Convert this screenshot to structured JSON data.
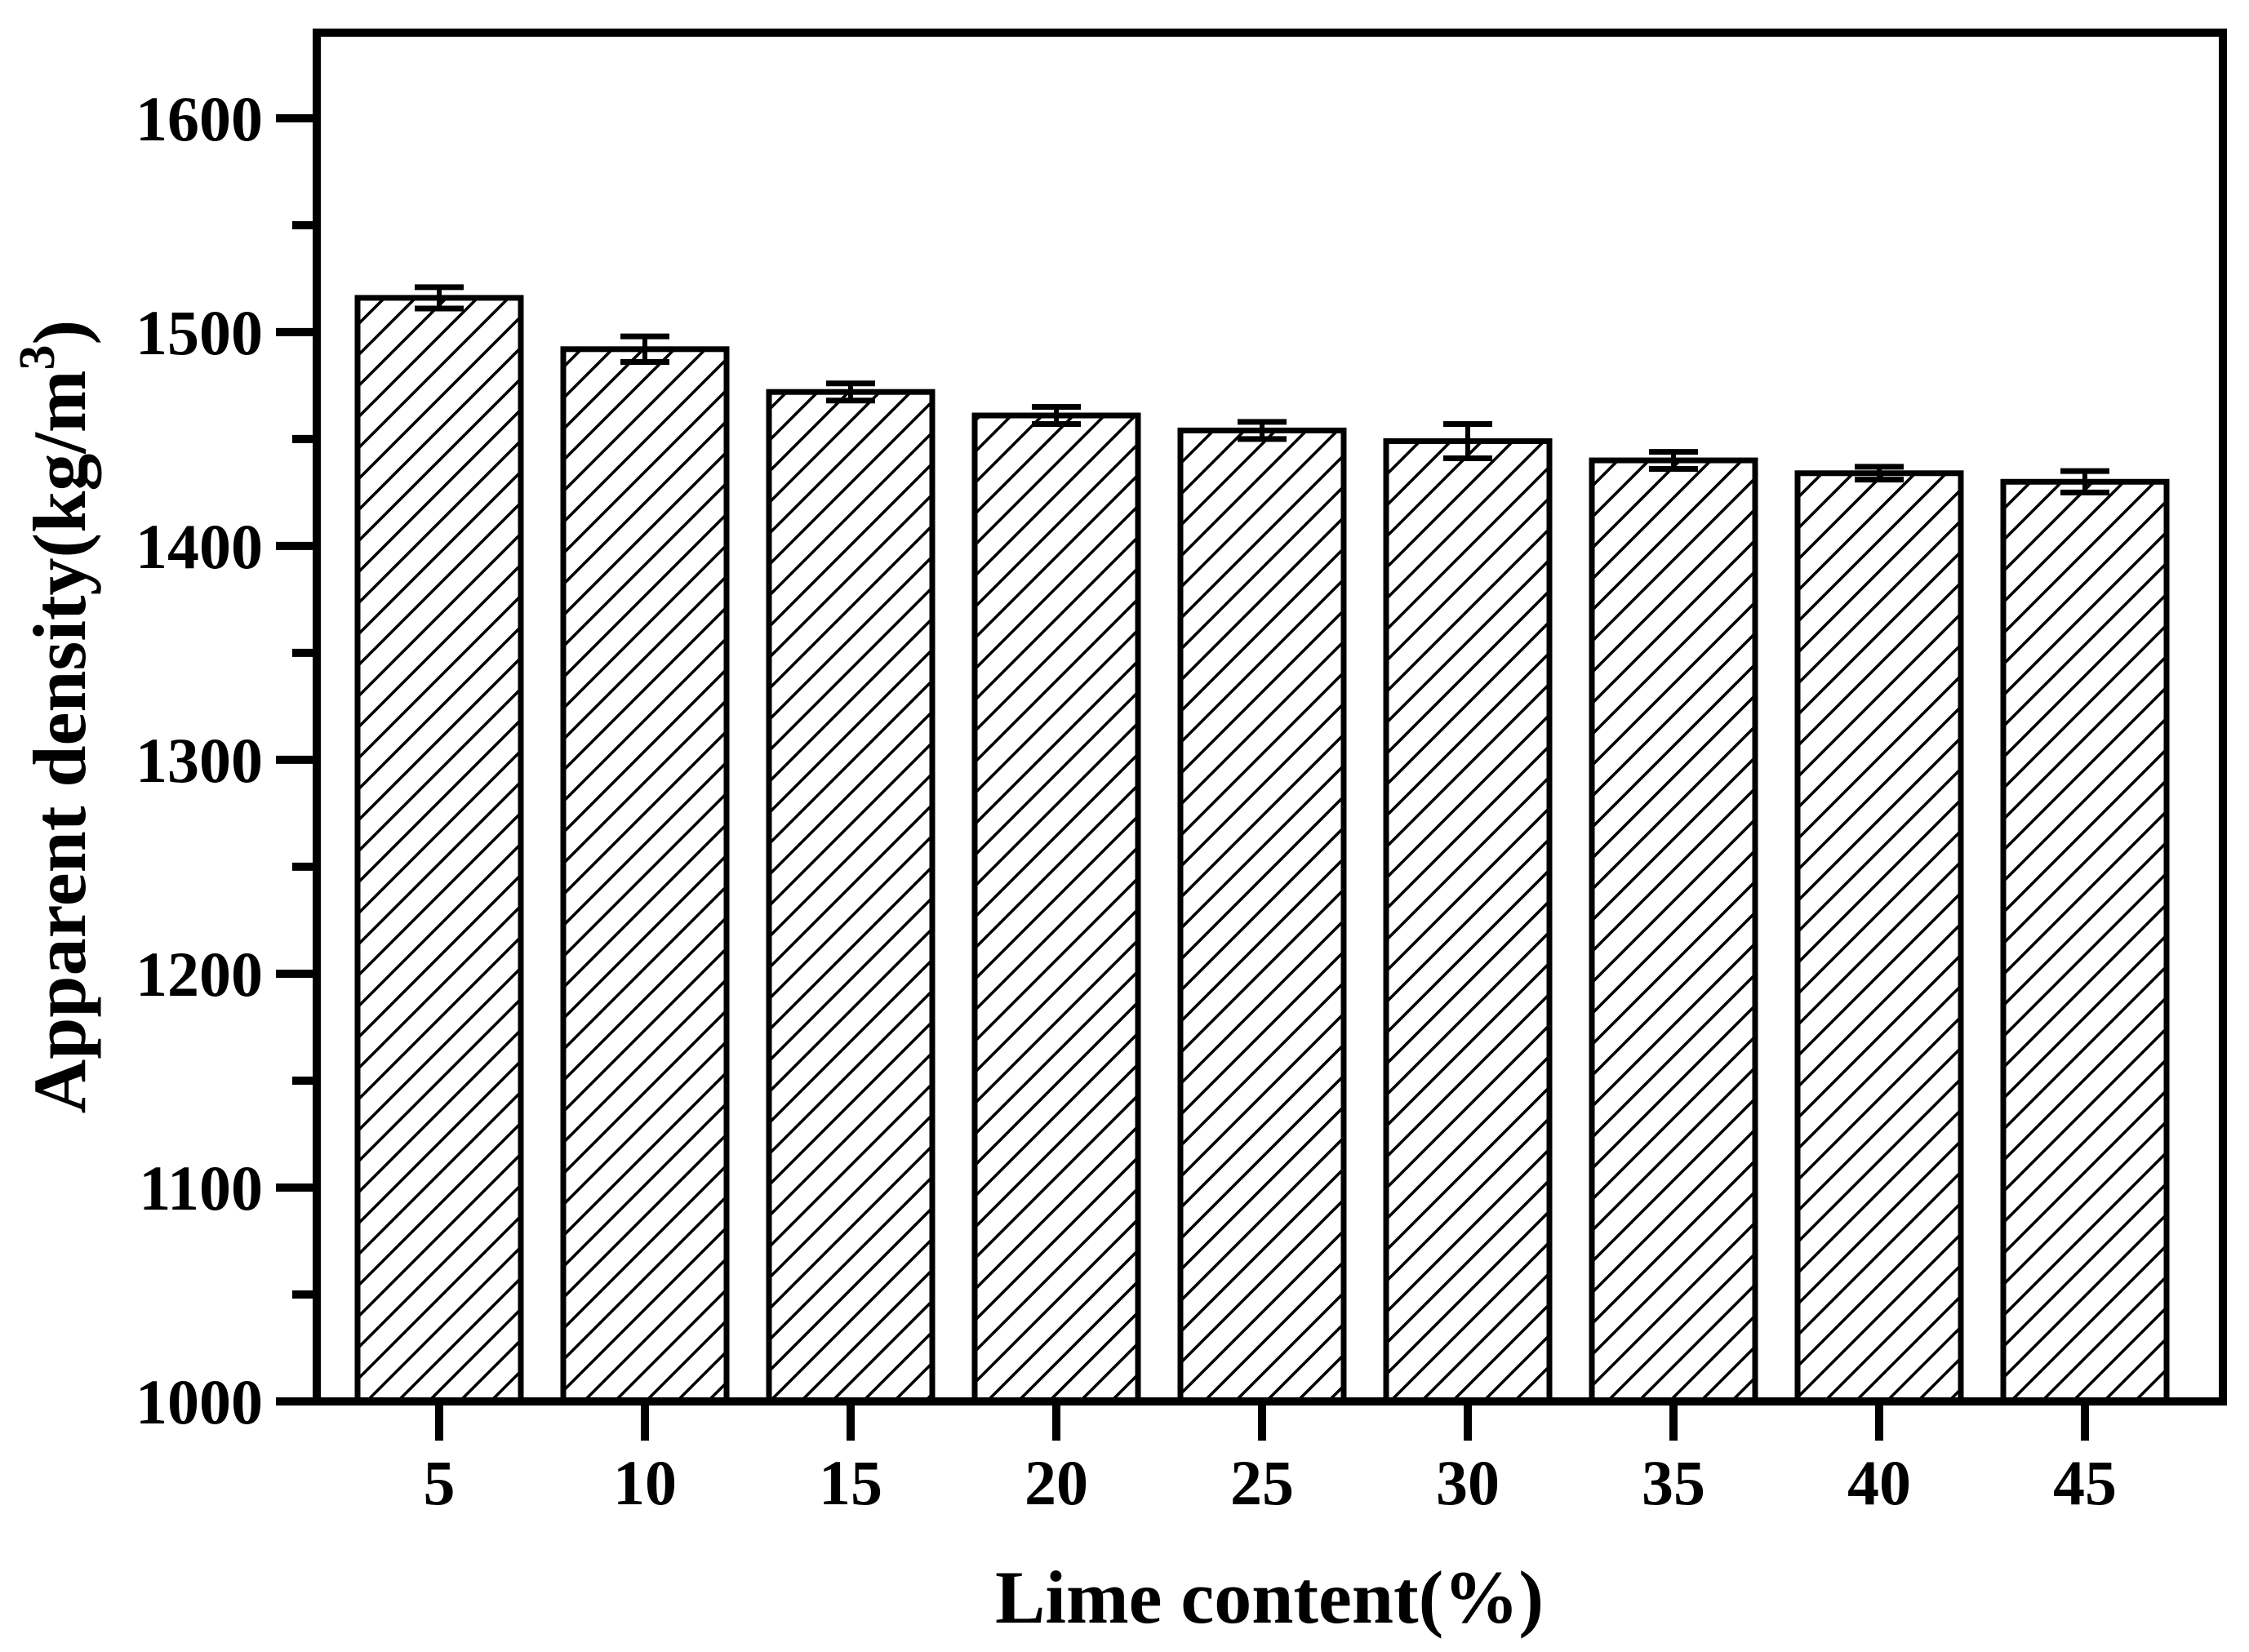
{
  "figure": {
    "background_color": "#ffffff",
    "ink_color": "#000000"
  },
  "chart_data": {
    "type": "bar",
    "title": "",
    "xlabel": "Lime content(%)",
    "ylabel": "Apparent density(kg/m³)",
    "ylabel_parts": {
      "main": "Apparent density(kg/m",
      "sup": "3",
      "close": ")"
    },
    "categories": [
      "5",
      "10",
      "15",
      "20",
      "25",
      "30",
      "35",
      "40",
      "45"
    ],
    "values": [
      1516,
      1492,
      1472,
      1461,
      1454,
      1449,
      1440,
      1434,
      1430
    ],
    "errors": [
      5,
      6,
      4,
      4,
      4,
      8,
      4,
      3,
      5
    ],
    "series_name": "Apparent density",
    "ylim": [
      1000,
      1640
    ],
    "ytick_major_step": 100,
    "ytick_minor_step": 50,
    "ytick_labels": [
      "1000",
      "1100",
      "1200",
      "1300",
      "1400",
      "1500",
      "1600"
    ],
    "grid": false,
    "legend": null,
    "bar_style": {
      "fill_pattern": "diagonal-hatch",
      "hatch_direction": "/",
      "outline_color": "#000000",
      "fill_background": "#ffffff"
    },
    "error_bar_style": "caps-both-ends"
  }
}
